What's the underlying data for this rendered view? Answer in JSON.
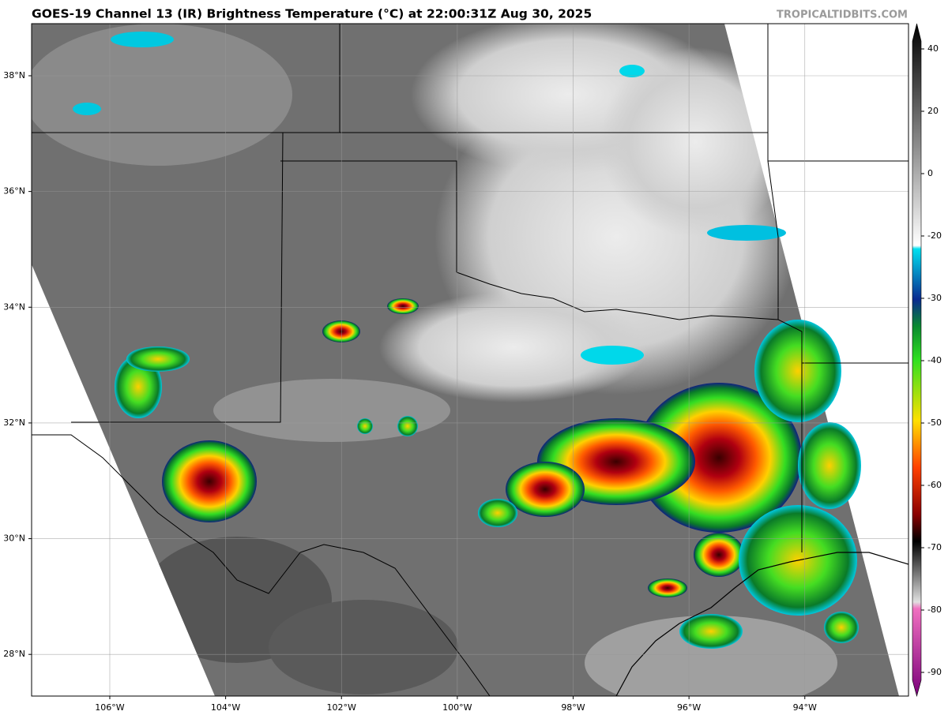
{
  "title": "GOES-19 Channel 13 (IR) Brightness Temperature (°C) at 22:00:31Z Aug 30, 2025",
  "watermark": "TROPICALTIDBITS.COM",
  "map": {
    "lonlim": [
      -107.35,
      -92.21
    ],
    "latlim": [
      27.28,
      38.9
    ],
    "lon_ticks": [
      {
        "value": -106,
        "label": "106°W"
      },
      {
        "value": -104,
        "label": "104°W"
      },
      {
        "value": -102,
        "label": "102°W"
      },
      {
        "value": -100,
        "label": "100°W"
      },
      {
        "value": -98,
        "label": "98°W"
      },
      {
        "value": -96,
        "label": "96°W"
      },
      {
        "value": -94,
        "label": "94°W"
      }
    ],
    "lat_ticks": [
      {
        "value": 38,
        "label": "38°N"
      },
      {
        "value": 36,
        "label": "36°N"
      },
      {
        "value": 34,
        "label": "34°N"
      },
      {
        "value": 32,
        "label": "32°N"
      },
      {
        "value": 30,
        "label": "30°N"
      },
      {
        "value": 28,
        "label": "28°N"
      }
    ]
  },
  "colorbar": {
    "ticks": [
      40,
      20,
      0,
      -20,
      -30,
      -40,
      -50,
      -60,
      -70,
      -80,
      -90
    ]
  }
}
